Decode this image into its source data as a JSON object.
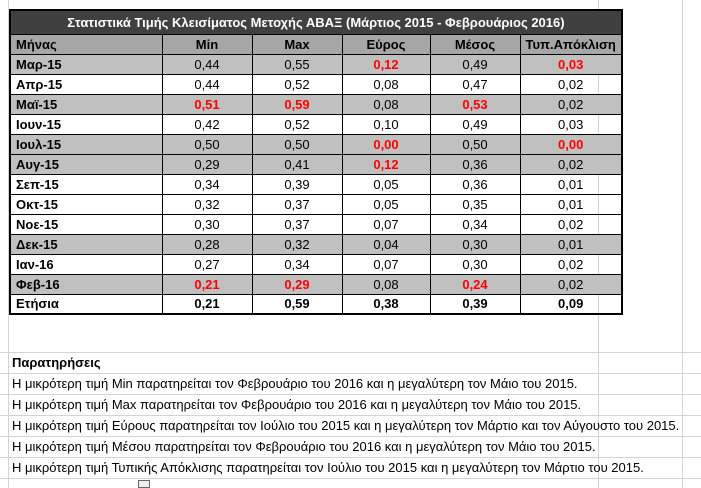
{
  "table": {
    "title": "Στατιστικά Τιμής Κλεισίματος Μετοχής ΑΒΑΞ (Μάρτιος 2015 - Φεβρουάριος 2016)",
    "headers": [
      "Μήνας",
      "Min",
      "Max",
      "Εύρος",
      "Μέσος",
      "Τυπ.Απόκλιση"
    ],
    "rows": [
      {
        "month": "Μαρ-15",
        "min": "0,44",
        "max": "0,55",
        "range": "0,12",
        "mean": "0,49",
        "std": "0,03"
      },
      {
        "month": "Απρ-15",
        "min": "0,44",
        "max": "0,52",
        "range": "0,08",
        "mean": "0,47",
        "std": "0,02"
      },
      {
        "month": "Μαϊ-15",
        "min": "0,51",
        "max": "0,59",
        "range": "0,08",
        "mean": "0,53",
        "std": "0,02"
      },
      {
        "month": "Ιουν-15",
        "min": "0,42",
        "max": "0,52",
        "range": "0,10",
        "mean": "0,49",
        "std": "0,03"
      },
      {
        "month": "Ιουλ-15",
        "min": "0,50",
        "max": "0,50",
        "range": "0,00",
        "mean": "0,50",
        "std": "0,00"
      },
      {
        "month": "Αυγ-15",
        "min": "0,29",
        "max": "0,41",
        "range": "0,12",
        "mean": "0,36",
        "std": "0,02"
      },
      {
        "month": "Σεπ-15",
        "min": "0,34",
        "max": "0,39",
        "range": "0,05",
        "mean": "0,36",
        "std": "0,01"
      },
      {
        "month": "Οκτ-15",
        "min": "0,32",
        "max": "0,37",
        "range": "0,05",
        "mean": "0,35",
        "std": "0,01"
      },
      {
        "month": "Νοε-15",
        "min": "0,30",
        "max": "0,37",
        "range": "0,07",
        "mean": "0,34",
        "std": "0,02"
      },
      {
        "month": "Δεκ-15",
        "min": "0,28",
        "max": "0,32",
        "range": "0,04",
        "mean": "0,30",
        "std": "0,01"
      },
      {
        "month": "Ιαν-16",
        "min": "0,27",
        "max": "0,34",
        "range": "0,07",
        "mean": "0,30",
        "std": "0,02"
      },
      {
        "month": "Φεβ-16",
        "min": "0,21",
        "max": "0,29",
        "range": "0,08",
        "mean": "0,24",
        "std": "0,02"
      }
    ],
    "annual": {
      "month": "Ετήσια",
      "min": "0,21",
      "max": "0,59",
      "range": "0,38",
      "mean": "0,39",
      "std": "0,09"
    }
  },
  "notes": {
    "title": "Παρατηρήσεις",
    "lines": [
      "Η μικρότερη τιμή Min παρατηρείται τον Φεβρουάριο του 2016 και η μεγαλύτερη τον Μάιο του 2015.",
      "Η μικρότερη τιμή Max παρατηρείται τον Φεβρουάριο του 2016 και η μεγαλύτερη τον Μάιο του 2015.",
      "Η μικρότερη τιμή Εύρους παρατηρείται τον Ιούλιο του 2015 και η μεγαλύτερη τον Μάρτιο και τον Αύγουστο του 2015.",
      "Η μικρότερη τιμή Μέσου παρατηρείται τον Φεβρουάριο του 2016 και η μεγαλύτερη τον Μάιο του 2015.",
      "Η μικρότερη τιμή Τυπικής Απόκλισης παρατηρείται τον Ιούλιο του 2015 και η μεγαλύτερη τον Μάρτιο του 2015."
    ]
  },
  "colors": {
    "title_bg": "#404040",
    "header_bg": "#a6a6a6",
    "shade_bg": "#c0c0c0",
    "highlight": "#ff0000"
  }
}
